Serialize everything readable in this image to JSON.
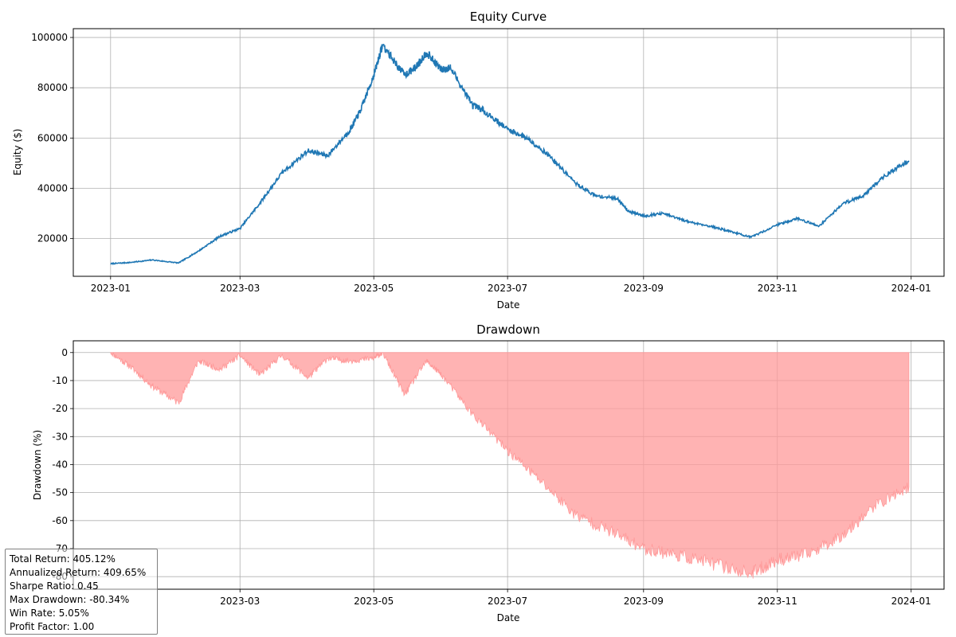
{
  "chart_data": [
    {
      "type": "line",
      "title": "Equity Curve",
      "xlabel": "Date",
      "ylabel": "Equity ($)",
      "x_ticks": [
        "2023-01",
        "2023-03",
        "2023-05",
        "2023-07",
        "2023-09",
        "2023-11",
        "2024-01"
      ],
      "y_ticks": [
        "20000",
        "40000",
        "60000",
        "80000",
        "100000"
      ],
      "ylim": [
        5000,
        103500
      ],
      "xlim": [
        "2022-12-15",
        "2024-01-16"
      ],
      "grid": true,
      "line_color": "#1f77b4",
      "series": [
        {
          "x": [
            "2023-01-01",
            "2023-01-10",
            "2023-01-20",
            "2023-02-01",
            "2023-02-10",
            "2023-02-20",
            "2023-03-01",
            "2023-03-10",
            "2023-03-20",
            "2023-04-01",
            "2023-04-10",
            "2023-04-20",
            "2023-04-25",
            "2023-05-01",
            "2023-05-05",
            "2023-05-15",
            "2023-05-20",
            "2023-05-25",
            "2023-06-01",
            "2023-06-05",
            "2023-06-15",
            "2023-06-20",
            "2023-07-01",
            "2023-07-10",
            "2023-07-20",
            "2023-08-01",
            "2023-08-10",
            "2023-08-20",
            "2023-08-25",
            "2023-09-01",
            "2023-09-10",
            "2023-09-20",
            "2023-10-01",
            "2023-10-10",
            "2023-10-20",
            "2023-11-01",
            "2023-11-10",
            "2023-11-20",
            "2023-12-01",
            "2023-12-10",
            "2023-12-20",
            "2023-12-31"
          ],
          "y": [
            10000,
            10500,
            11500,
            10300,
            15000,
            21000,
            24000,
            34000,
            46000,
            55000,
            53000,
            63000,
            71000,
            85000,
            97000,
            85000,
            88000,
            94000,
            87000,
            88000,
            73000,
            71000,
            63500,
            60000,
            53000,
            42000,
            37000,
            36000,
            31000,
            29000,
            30000,
            27000,
            25000,
            23000,
            20500,
            25500,
            28000,
            25000,
            34000,
            37000,
            45000,
            51000
          ]
        }
      ]
    },
    {
      "type": "area",
      "title": "Drawdown",
      "xlabel": "Date",
      "ylabel": "Drawdown (%)",
      "x_ticks": [
        "2023-03",
        "2023-05",
        "2023-07",
        "2023-09",
        "2023-11",
        "2024-01"
      ],
      "y_ticks": [
        "0",
        "-10",
        "-20",
        "-30",
        "-40",
        "-50",
        "-60",
        "-70",
        "-80"
      ],
      "ylim": [
        -84.5,
        4.2
      ],
      "xlim": [
        "2022-12-15",
        "2024-01-16"
      ],
      "grid": true,
      "fill_color": "#ff9999",
      "series": [
        {
          "x": [
            "2023-01-01",
            "2023-01-10",
            "2023-01-20",
            "2023-02-01",
            "2023-02-10",
            "2023-02-20",
            "2023-03-01",
            "2023-03-10",
            "2023-03-20",
            "2023-04-01",
            "2023-04-10",
            "2023-04-20",
            "2023-05-01",
            "2023-05-05",
            "2023-05-15",
            "2023-05-25",
            "2023-06-01",
            "2023-06-15",
            "2023-07-01",
            "2023-07-15",
            "2023-08-01",
            "2023-08-15",
            "2023-09-01",
            "2023-09-15",
            "2023-10-01",
            "2023-10-20",
            "2023-11-01",
            "2023-11-15",
            "2023-12-01",
            "2023-12-15",
            "2023-12-31"
          ],
          "y": [
            0,
            -5,
            -12,
            -18,
            -3,
            -6,
            -1,
            -8,
            -1,
            -9,
            -2,
            -3,
            -2,
            0,
            -15,
            -3,
            -8,
            -22,
            -35,
            -45,
            -58,
            -63,
            -70,
            -72,
            -75,
            -79,
            -74,
            -72,
            -65,
            -55,
            -48
          ]
        }
      ]
    }
  ],
  "stats": {
    "total_return": "Total Return: 405.12%",
    "annualized_return": "Annualized Return: 409.65%",
    "sharpe_ratio": "Sharpe Ratio: 0.45",
    "max_drawdown": "Max Drawdown: -80.34%",
    "win_rate": "Win Rate: 5.05%",
    "profit_factor": "Profit Factor: 1.00"
  }
}
